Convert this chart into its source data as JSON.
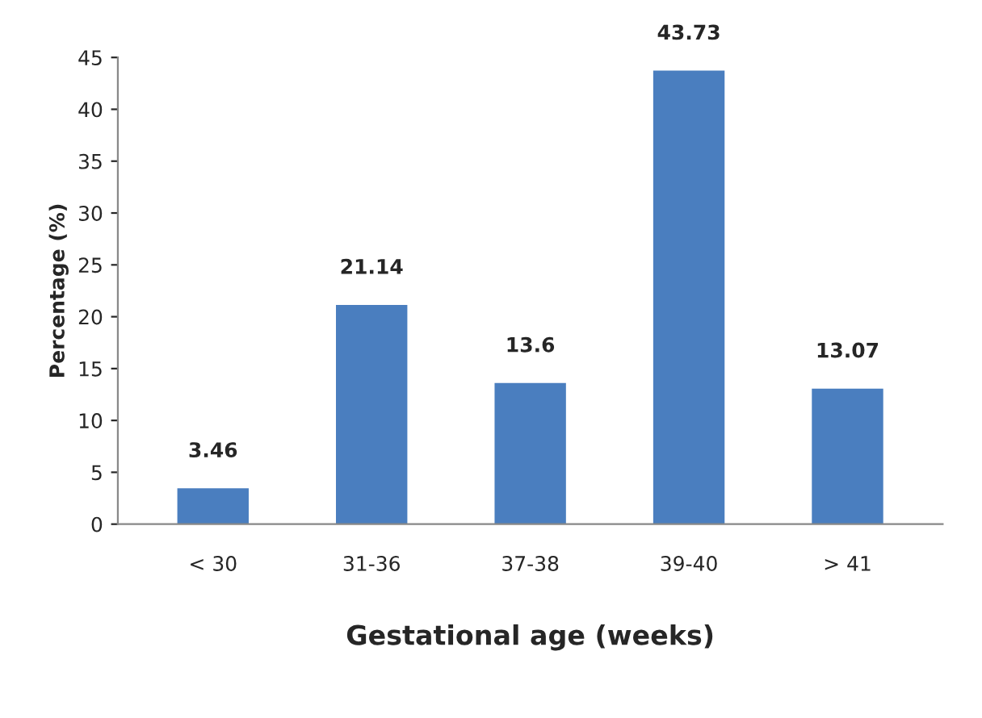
{
  "chart_data": {
    "type": "bar",
    "xlabel": "Gestational age (weeks)",
    "ylabel": "Percentage (%)",
    "categories": [
      "< 30",
      "31-36",
      "37-38",
      "39-40",
      "> 41"
    ],
    "values": [
      3.46,
      21.14,
      13.6,
      43.73,
      13.07
    ],
    "color": "#4a7ebf",
    "ylim": [
      0,
      45
    ],
    "yticks": [
      0,
      5,
      10,
      15,
      20,
      25,
      30,
      35,
      40,
      45
    ],
    "data_labels": true,
    "grid": false
  }
}
